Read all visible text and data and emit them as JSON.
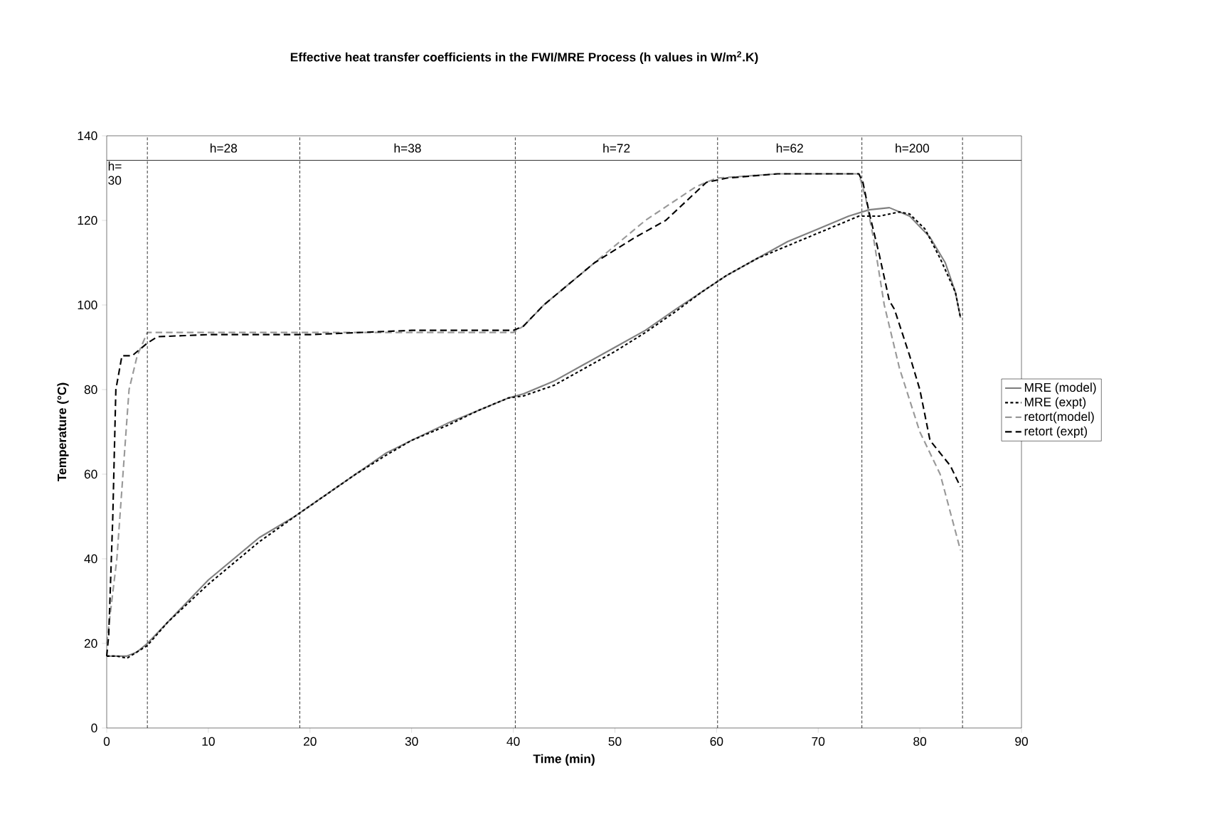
{
  "chart_data": {
    "type": "line",
    "title": "Effective heat transfer coefficients in the FWI/MRE Process (h values in W/m$^{2}$.K)",
    "xlabel": "Time (min)",
    "ylabel": "Temperature (°C)",
    "xlim": [
      0,
      90
    ],
    "ylim": [
      0,
      140
    ],
    "xticks": [
      0,
      10,
      20,
      30,
      40,
      50,
      60,
      70,
      80,
      90
    ],
    "yticks": [
      0,
      20,
      40,
      60,
      80,
      100,
      120,
      140
    ],
    "legend": "right",
    "series": [
      {
        "name": "MRE (model)",
        "color": "#808080",
        "line_style": "solid",
        "x": [
          0,
          1,
          2,
          2.5,
          3,
          4,
          6,
          8,
          10,
          12.5,
          15,
          18.5,
          21.5,
          24.5,
          27.5,
          30,
          33.5,
          36.5,
          39.5,
          41,
          44,
          47,
          50,
          53,
          56,
          58.5,
          61,
          64,
          67,
          70,
          73,
          75,
          77,
          79,
          81,
          82.5,
          83.5,
          84
        ],
        "values": [
          17,
          17,
          17,
          17.5,
          18,
          20,
          25,
          30,
          35,
          40,
          45,
          50,
          55,
          60,
          65,
          68,
          72,
          75,
          78,
          79,
          82,
          86,
          90,
          94,
          99,
          103,
          107,
          111,
          115,
          118,
          121,
          122.5,
          123,
          121,
          116,
          110,
          103,
          97
        ]
      },
      {
        "name": "MRE (expt)",
        "color": "#000000",
        "line_style": "dotted",
        "x": [
          0,
          1,
          2,
          3,
          4,
          6,
          8,
          10,
          12.5,
          15,
          18.5,
          21.5,
          24.5,
          27.5,
          30,
          33.5,
          36.5,
          39.5,
          41,
          44,
          47,
          50,
          53,
          56,
          58.5,
          61,
          64,
          67,
          70,
          72,
          74,
          76,
          78,
          79,
          80.5,
          82,
          83.5,
          84
        ],
        "values": [
          17,
          17,
          16.5,
          18,
          19.5,
          25,
          29.5,
          34,
          39,
          44,
          50,
          55,
          60,
          64.5,
          68,
          71.5,
          75,
          78,
          78.5,
          81,
          85,
          89,
          93.5,
          98.5,
          103,
          107,
          111,
          114,
          117,
          119,
          121,
          121,
          122,
          121.5,
          118,
          111,
          103,
          97
        ]
      },
      {
        "name": "retort(model)",
        "color": "#999999",
        "line_style": "dashed",
        "x": [
          0,
          0.5,
          1,
          1.6,
          2.2,
          3,
          4,
          10,
          20,
          30,
          40,
          41,
          43,
          48,
          53,
          58,
          60,
          66,
          74,
          74.7,
          75.5,
          76.5,
          78,
          80,
          82,
          84
        ],
        "values": [
          20,
          30,
          40,
          60,
          80,
          88,
          93.5,
          93.5,
          93.5,
          93.5,
          93.5,
          95,
          100,
          110,
          120,
          128,
          130,
          131,
          131,
          125,
          115,
          100,
          85,
          70,
          60,
          42
        ]
      },
      {
        "name": "retort (expt)",
        "color": "#000000",
        "line_style": "dashed",
        "x": [
          0,
          0.2,
          0.6,
          0.9,
          1.5,
          2.5,
          4,
          5,
          10,
          20,
          30,
          40,
          41,
          43,
          48,
          52,
          55,
          59,
          61,
          66,
          74,
          74.4,
          75,
          76,
          77,
          77.5,
          79,
          80,
          81,
          83,
          84
        ],
        "values": [
          17,
          22,
          50,
          80,
          88,
          88,
          91,
          92.5,
          93,
          93,
          94,
          94,
          95,
          100,
          110,
          116,
          120,
          129,
          130,
          131,
          131,
          129,
          122,
          112,
          101,
          99,
          88,
          80,
          68,
          62,
          57
        ]
      }
    ],
    "ref_lines": [
      {
        "axis": "x",
        "value": 4,
        "line_style": "dashed"
      },
      {
        "axis": "x",
        "value": 19,
        "line_style": "dashed"
      },
      {
        "axis": "x",
        "value": 40.2,
        "line_style": "dashed"
      },
      {
        "axis": "x",
        "value": 60.1,
        "line_style": "dashed"
      },
      {
        "axis": "x",
        "value": 74.3,
        "line_style": "dashed"
      },
      {
        "axis": "x",
        "value": 84.2,
        "line_style": "dashed"
      },
      {
        "axis": "y",
        "value": 134.2,
        "line_style": "solid"
      }
    ],
    "annotations": [
      "h= 30",
      "h=28",
      "h=38",
      "h=72",
      "h=62",
      "h=200"
    ]
  }
}
